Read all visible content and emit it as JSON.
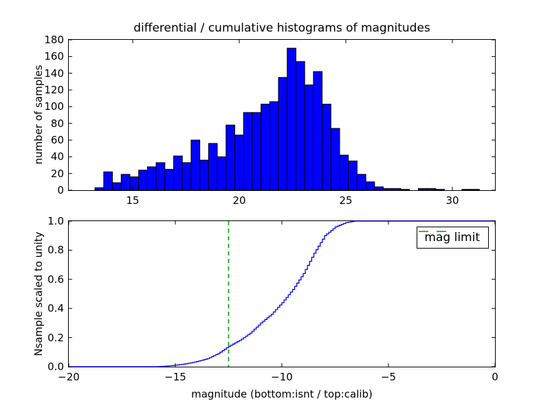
{
  "figure": {
    "background": "#ffffff",
    "title": "differential / cumulative histograms of magnitudes"
  },
  "chart_data": [
    {
      "type": "bar",
      "role": "differential-histogram-top",
      "title": "differential / cumulative histograms of magnitudes",
      "ylabel": "number of samples",
      "xlim": [
        12,
        32
      ],
      "ylim": [
        0,
        180
      ],
      "xticks": [
        15,
        20,
        25,
        30
      ],
      "xtick_labels": [
        "15",
        "20",
        "25",
        "30"
      ],
      "yticks": [
        0,
        20,
        40,
        60,
        80,
        100,
        120,
        140,
        160,
        180
      ],
      "ytick_labels": [
        "0",
        "20",
        "40",
        "60",
        "80",
        "100",
        "120",
        "140",
        "160",
        "180"
      ],
      "bin_start": 13.23,
      "bin_width": 0.41,
      "counts": [
        3,
        22,
        9,
        19,
        16,
        24,
        28,
        33,
        25,
        41,
        33,
        60,
        36,
        56,
        40,
        78,
        66,
        93,
        93,
        103,
        106,
        135,
        170,
        154,
        126,
        142,
        103,
        74,
        42,
        35,
        19,
        10,
        4,
        2,
        2,
        1,
        0,
        2,
        2,
        1,
        0,
        0,
        1,
        1,
        0
      ],
      "bar_color": "#0000ff",
      "bar_edge_color": "#000000",
      "grid": false
    },
    {
      "type": "line",
      "role": "cumulative-histogram-bottom",
      "ylabel": "Nsample scaled to unity",
      "xlabel": "magnitude (bottom:isnt / top:calib)",
      "xlim": [
        -20,
        0
      ],
      "ylim": [
        0.0,
        1.0
      ],
      "xticks": [
        -20,
        -15,
        -10,
        -5,
        0
      ],
      "xtick_labels": [
        "−20",
        "−15",
        "−10",
        "−5",
        "0"
      ],
      "yticks": [
        0.0,
        0.2,
        0.4,
        0.6,
        0.8,
        1.0
      ],
      "ytick_labels": [
        "0.0",
        "0.2",
        "0.4",
        "0.6",
        "0.8",
        "1.0"
      ],
      "line_color": "#0000ee",
      "line_style": "step",
      "step_width": 0.1,
      "cdf_points": [
        [
          -20,
          0
        ],
        [
          -15.9,
          0
        ],
        [
          -15.5,
          0.003
        ],
        [
          -15,
          0.01
        ],
        [
          -14.5,
          0.02
        ],
        [
          -14,
          0.035
        ],
        [
          -13.5,
          0.055
        ],
        [
          -13,
          0.09
        ],
        [
          -12.5,
          0.14
        ],
        [
          -12,
          0.18
        ],
        [
          -11.5,
          0.23
        ],
        [
          -11,
          0.3
        ],
        [
          -10.5,
          0.36
        ],
        [
          -10,
          0.44
        ],
        [
          -9.5,
          0.53
        ],
        [
          -9,
          0.64
        ],
        [
          -8.5,
          0.78
        ],
        [
          -8,
          0.9
        ],
        [
          -7.5,
          0.96
        ],
        [
          -7,
          0.99
        ],
        [
          -6.6,
          1.0
        ],
        [
          0,
          1.0
        ]
      ],
      "vline": {
        "x": -12.5,
        "color": "#009900",
        "style": "dashed",
        "label": "mag limit"
      },
      "legend": {
        "label": "mag limit",
        "position": "upper right"
      },
      "grid": false
    }
  ]
}
